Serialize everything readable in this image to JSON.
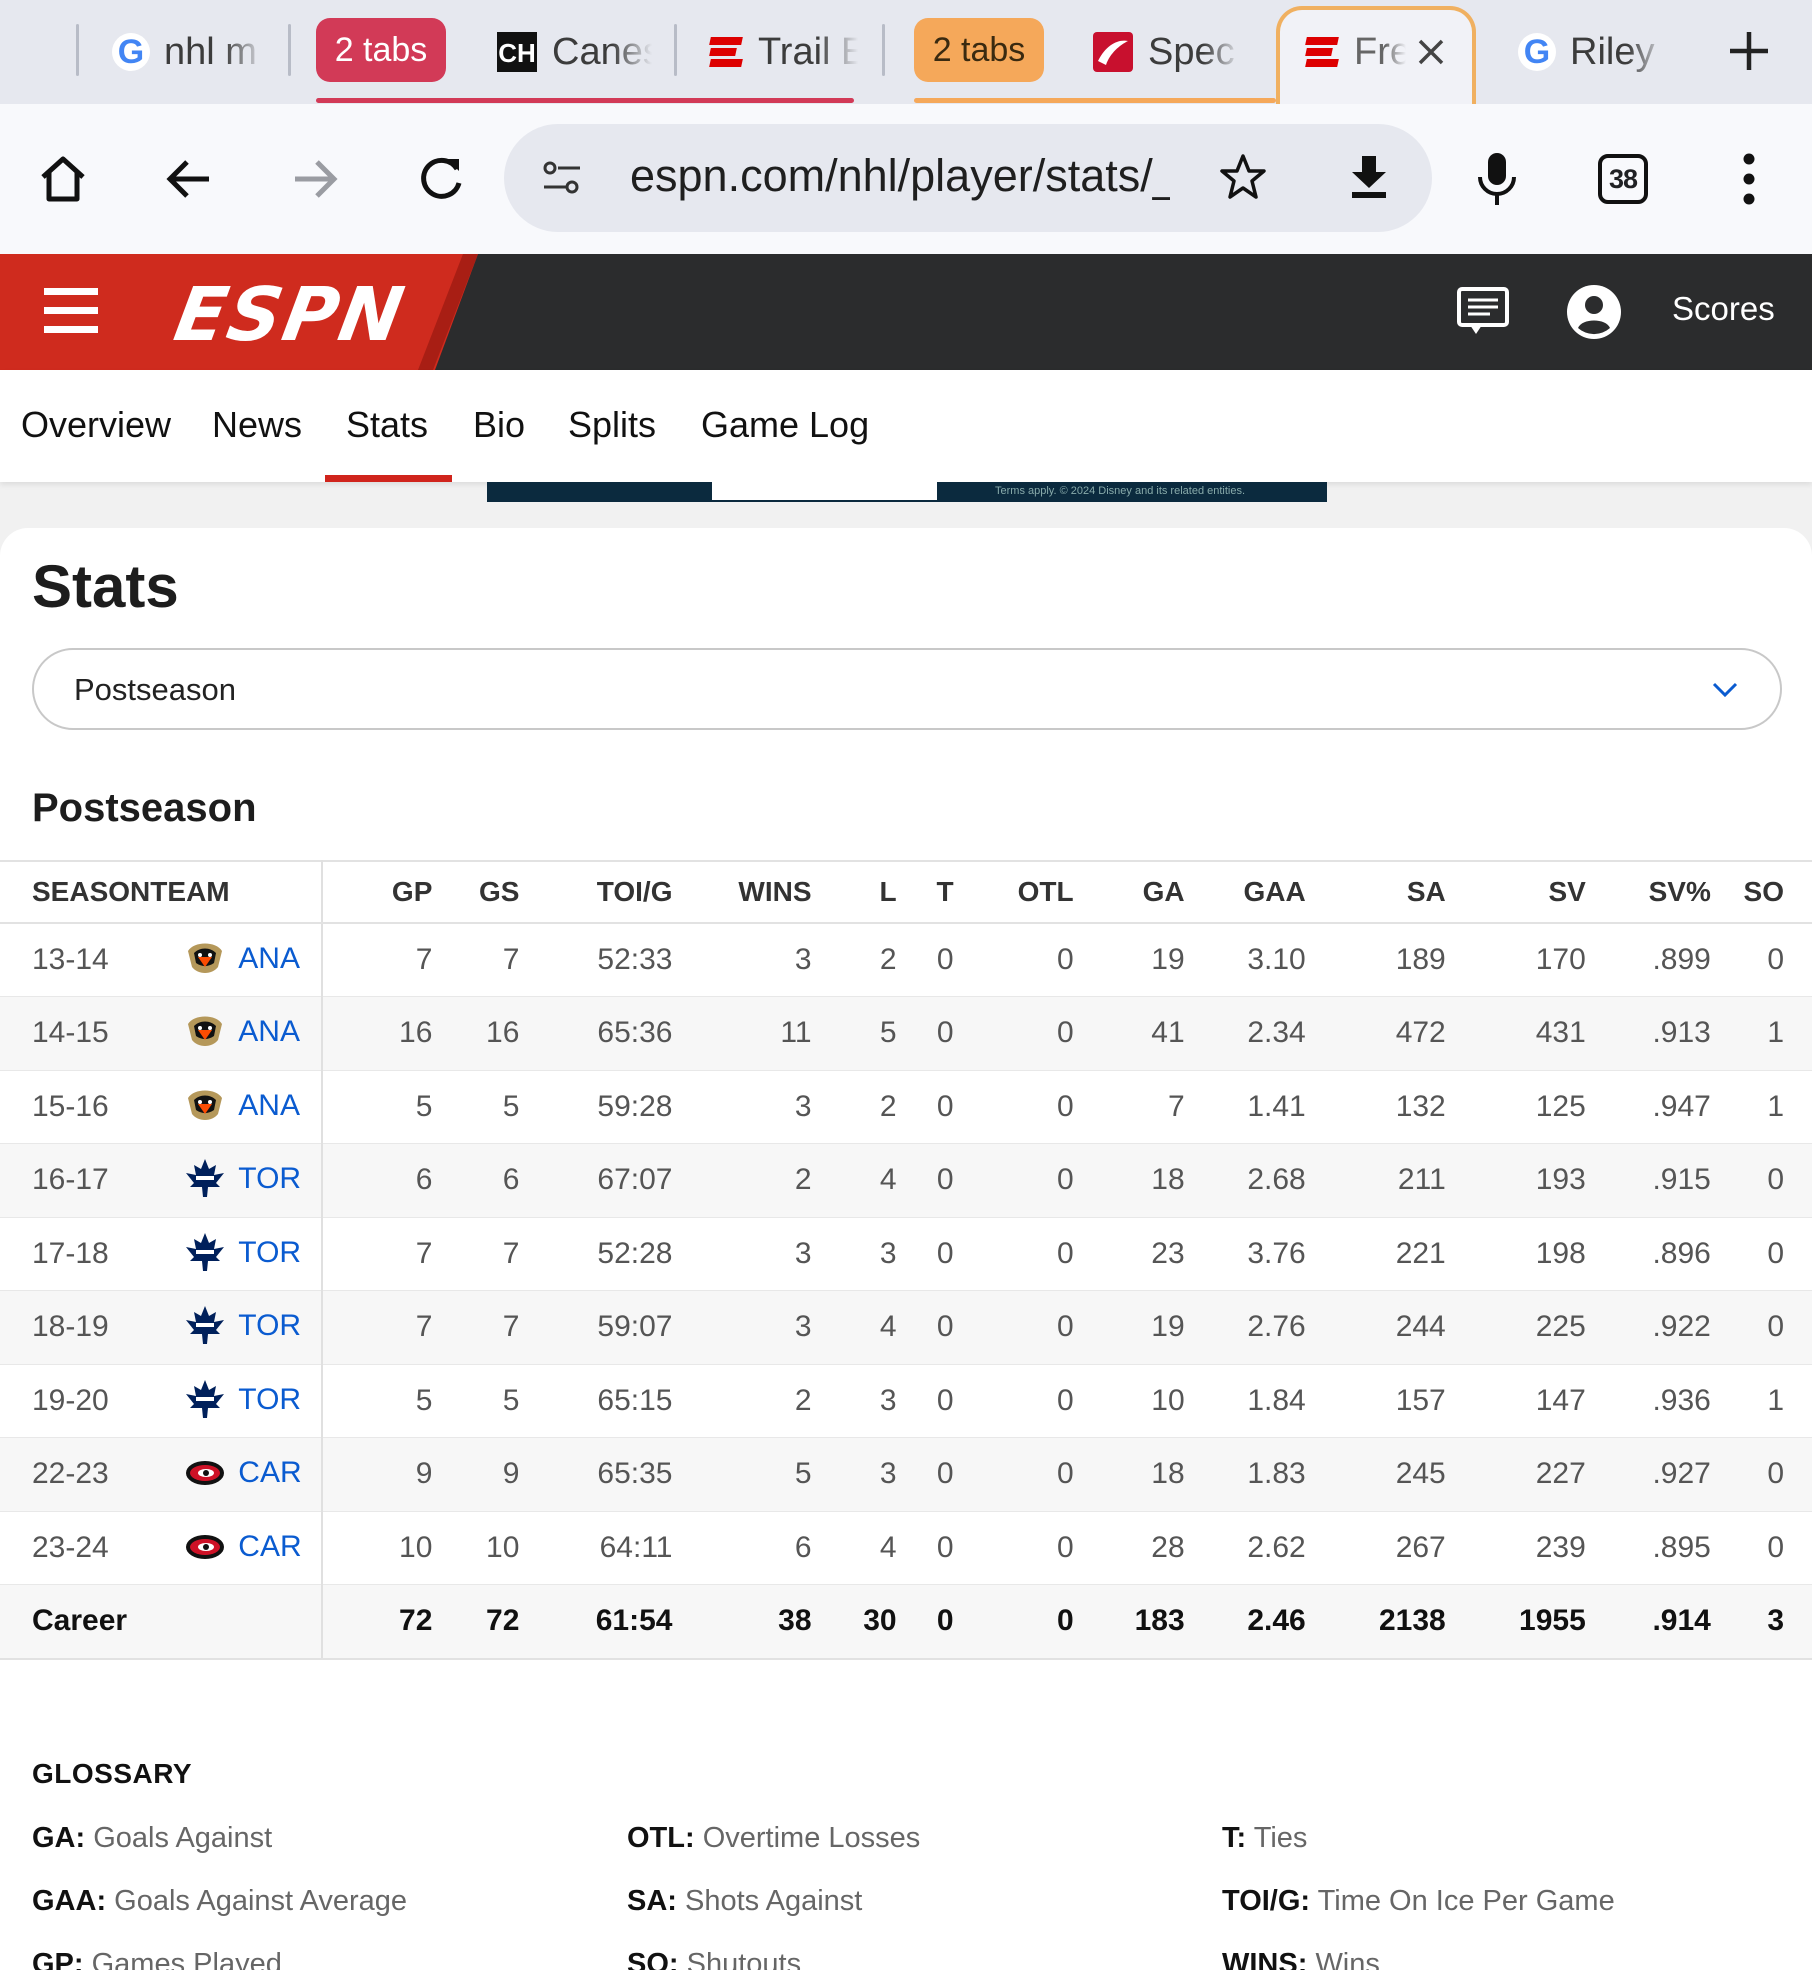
{
  "tabs": [
    {
      "type": "google",
      "title": "nhl m"
    },
    {
      "type": "group",
      "label": "2 tabs",
      "color": "#d23a57"
    },
    {
      "type": "canes",
      "title": "Canes"
    },
    {
      "type": "espn",
      "title": "Trail E"
    },
    {
      "type": "group",
      "label": "2 tabs",
      "color": "#f5a85a"
    },
    {
      "type": "spec",
      "title": "Spec"
    },
    {
      "type": "espn-active",
      "title": "Fre"
    },
    {
      "type": "google",
      "title": "Riley"
    }
  ],
  "toolbar": {
    "url": "espn.com/nhl/player/stats/_/",
    "tab_count": "38"
  },
  "espn": {
    "logo": "ESPN",
    "scores_label": "Scores"
  },
  "subnav": [
    "Overview",
    "News",
    "Stats",
    "Bio",
    "Splits",
    "Game Log"
  ],
  "ad": {
    "fine_print": "Terms apply. © 2024 Disney and its related entities."
  },
  "stats": {
    "title": "Stats",
    "season_type": "Postseason",
    "section_title": "Postseason",
    "columns": [
      "SEASON",
      "TEAM",
      "GP",
      "GS",
      "TOI/G",
      "WINS",
      "L",
      "T",
      "OTL",
      "GA",
      "GAA",
      "SA",
      "SV",
      "SV%",
      "SO"
    ],
    "rows": [
      {
        "season": "13-14",
        "team": "ANA",
        "logo": "ducks",
        "vals": [
          "7",
          "7",
          "52:33",
          "3",
          "2",
          "0",
          "0",
          "19",
          "3.10",
          "189",
          "170",
          ".899",
          "0"
        ]
      },
      {
        "season": "14-15",
        "team": "ANA",
        "logo": "ducks",
        "vals": [
          "16",
          "16",
          "65:36",
          "11",
          "5",
          "0",
          "0",
          "41",
          "2.34",
          "472",
          "431",
          ".913",
          "1"
        ]
      },
      {
        "season": "15-16",
        "team": "ANA",
        "logo": "ducks",
        "vals": [
          "5",
          "5",
          "59:28",
          "3",
          "2",
          "0",
          "0",
          "7",
          "1.41",
          "132",
          "125",
          ".947",
          "1"
        ]
      },
      {
        "season": "16-17",
        "team": "TOR",
        "logo": "leafs",
        "vals": [
          "6",
          "6",
          "67:07",
          "2",
          "4",
          "0",
          "0",
          "18",
          "2.68",
          "211",
          "193",
          ".915",
          "0"
        ]
      },
      {
        "season": "17-18",
        "team": "TOR",
        "logo": "leafs",
        "vals": [
          "7",
          "7",
          "52:28",
          "3",
          "3",
          "0",
          "0",
          "23",
          "3.76",
          "221",
          "198",
          ".896",
          "0"
        ]
      },
      {
        "season": "18-19",
        "team": "TOR",
        "logo": "leafs",
        "vals": [
          "7",
          "7",
          "59:07",
          "3",
          "4",
          "0",
          "0",
          "19",
          "2.76",
          "244",
          "225",
          ".922",
          "0"
        ]
      },
      {
        "season": "19-20",
        "team": "TOR",
        "logo": "leafs",
        "vals": [
          "5",
          "5",
          "65:15",
          "2",
          "3",
          "0",
          "0",
          "10",
          "1.84",
          "157",
          "147",
          ".936",
          "1"
        ]
      },
      {
        "season": "22-23",
        "team": "CAR",
        "logo": "canes",
        "vals": [
          "9",
          "9",
          "65:35",
          "5",
          "3",
          "0",
          "0",
          "18",
          "1.83",
          "245",
          "227",
          ".927",
          "0"
        ]
      },
      {
        "season": "23-24",
        "team": "CAR",
        "logo": "canes",
        "vals": [
          "10",
          "10",
          "64:11",
          "6",
          "4",
          "0",
          "0",
          "28",
          "2.62",
          "267",
          "239",
          ".895",
          "0"
        ]
      }
    ],
    "career": {
      "label": "Career",
      "vals": [
        "72",
        "72",
        "61:54",
        "38",
        "30",
        "0",
        "0",
        "183",
        "2.46",
        "2138",
        "1955",
        ".914",
        "3"
      ]
    }
  },
  "glossary": {
    "heading": "GLOSSARY",
    "items": [
      {
        "abbr": "GA:",
        "def": "Goals Against"
      },
      {
        "abbr": "OTL:",
        "def": "Overtime Losses"
      },
      {
        "abbr": "T:",
        "def": "Ties"
      },
      {
        "abbr": "GAA:",
        "def": "Goals Against Average"
      },
      {
        "abbr": "SA:",
        "def": "Shots Against"
      },
      {
        "abbr": "TOI/G:",
        "def": "Time On Ice Per Game"
      },
      {
        "abbr": "GP:",
        "def": "Games Played"
      },
      {
        "abbr": "SO:",
        "def": "Shutouts"
      },
      {
        "abbr": "WINS:",
        "def": "Wins"
      }
    ]
  }
}
